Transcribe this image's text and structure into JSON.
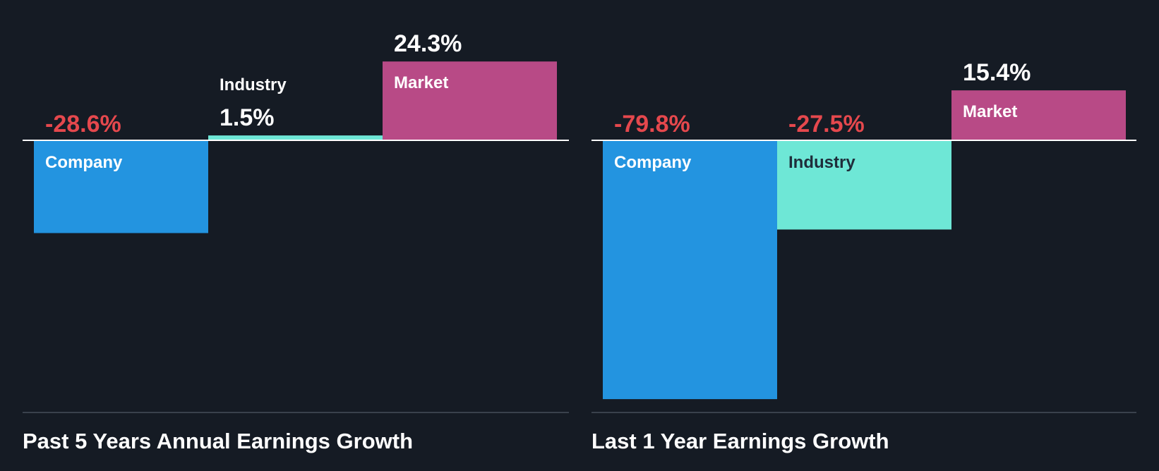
{
  "colors": {
    "background": "#151b24",
    "company": "#2394e0",
    "industry": "#6ee7d6",
    "market": "#b84a86",
    "negative_text": "#e5484d",
    "positive_text": "#ffffff",
    "axis_line": "#ffffff",
    "baseline": "#3a414c"
  },
  "chart_data": [
    {
      "type": "bar",
      "title": "Past 5 Years Annual Earnings Growth",
      "categories": [
        "Company",
        "Industry",
        "Market"
      ],
      "values": [
        -28.6,
        1.5,
        24.3
      ],
      "value_labels": [
        "-28.6%",
        "1.5%",
        "24.3%"
      ],
      "unit": "%",
      "ylim": [
        -80.3,
        24.3
      ]
    },
    {
      "type": "bar",
      "title": "Last 1 Year Earnings Growth",
      "categories": [
        "Company",
        "Industry",
        "Market"
      ],
      "values": [
        -79.8,
        -27.5,
        15.4
      ],
      "value_labels": [
        "-79.8%",
        "-27.5%",
        "15.4%"
      ],
      "unit": "%",
      "ylim": [
        -79.8,
        24.3
      ]
    }
  ]
}
